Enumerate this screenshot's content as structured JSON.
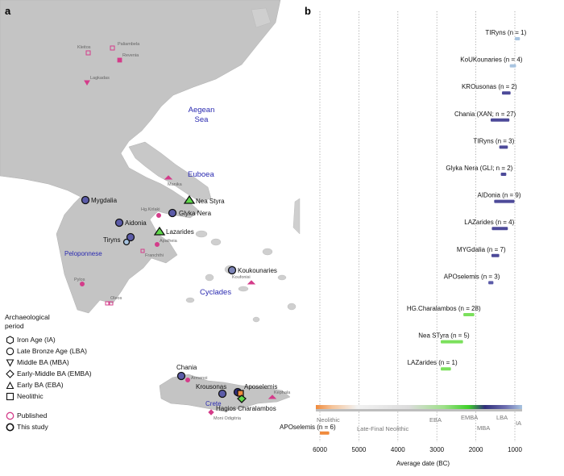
{
  "panels": {
    "a": "a",
    "b": "b"
  },
  "map": {
    "sea_labels": [
      "Aegean",
      "Sea"
    ],
    "region_labels": {
      "euboea": "Euboea",
      "peloponnese": "Peloponnese",
      "cyclades": "Cyclades",
      "crete": "Crete"
    },
    "sites": [
      {
        "name": "Mygdalia",
        "kind": "study",
        "shape": "circle"
      },
      {
        "name": "Nea Styra",
        "kind": "study",
        "shape": "triangle"
      },
      {
        "name": "Glyka Nera",
        "kind": "study",
        "shape": "circle"
      },
      {
        "name": "Aidonia",
        "kind": "study",
        "shape": "circle"
      },
      {
        "name": "Lazarides",
        "kind": "study",
        "shape": "triangle"
      },
      {
        "name": "Tiryns",
        "kind": "study",
        "shape": "circle"
      },
      {
        "name": "Koukounaries",
        "kind": "study",
        "shape": "circle"
      },
      {
        "name": "Chania",
        "kind": "study",
        "shape": "circle"
      },
      {
        "name": "Krousonas",
        "kind": "study",
        "shape": "circle"
      },
      {
        "name": "Aposelemis",
        "kind": "study",
        "shape": "square"
      },
      {
        "name": "Hagios Charalambos",
        "kind": "study",
        "shape": "diamond"
      }
    ],
    "published_sites": [
      "Paliambela",
      "Kleitos",
      "Revenia",
      "Lagkadas",
      "Manika",
      "Hg.Kirlaki",
      "Apatheia",
      "Franchthi",
      "Pylos",
      "Oleos",
      "Koufonisi",
      "Armenoi",
      "Kephala",
      "Moni Odigitria"
    ]
  },
  "legend": {
    "title_line1": "Archaeological",
    "title_line2": "period",
    "periods": [
      "Iron Age (IA)",
      "Late Bronze Age (LBA)",
      "Middle BA (MBA)",
      "Early-Middle BA (EMBA)",
      "Early BA (EBA)",
      "Neolithic"
    ],
    "sources": [
      "Published",
      "This study"
    ]
  },
  "chart_data": {
    "type": "range-bar",
    "xlabel": "Average date (BC)",
    "x_ticks": [
      6000,
      5000,
      4000,
      3000,
      2000,
      1000
    ],
    "xlim": [
      6300,
      800
    ],
    "x_reversed": true,
    "grid": "vertical dotted",
    "period_colors": {
      "IA": "#a8c4e0",
      "LBA": "#4d4a99",
      "MBA": "#5b5ba8",
      "EMBA": "#2f2f7a",
      "EBA": "#7be05c",
      "Neolithic": "#f08a3c"
    },
    "period_bar_labels": [
      "Neolithic",
      "Late-Final Neolithic",
      "EBA",
      "EMBA",
      "MBA",
      "LBA",
      "IA"
    ],
    "series": [
      {
        "label": "TIRyns (n = 1)",
        "start": 1000,
        "end": 870,
        "period": "IA"
      },
      {
        "label": "KoUKounaries (n = 4)",
        "start": 1130,
        "end": 970,
        "period": "IA"
      },
      {
        "label": "KROusonas (n = 2)",
        "start": 1330,
        "end": 1110,
        "period": "LBA"
      },
      {
        "label": "Chania (XAN; n = 27)",
        "start": 1620,
        "end": 1140,
        "period": "LBA"
      },
      {
        "label": "TIRyns (n = 3)",
        "start": 1400,
        "end": 1180,
        "period": "LBA"
      },
      {
        "label": "Glyka Nera (GLI; n = 2)",
        "start": 1360,
        "end": 1220,
        "period": "LBA"
      },
      {
        "label": "AIDonia (n = 9)",
        "start": 1530,
        "end": 1010,
        "period": "LBA"
      },
      {
        "label": "LAZarides (n = 4)",
        "start": 1590,
        "end": 1180,
        "period": "LBA"
      },
      {
        "label": "MYGdalia (n = 7)",
        "start": 1600,
        "end": 1400,
        "period": "LBA"
      },
      {
        "label": "APOselemis (n = 3)",
        "start": 1680,
        "end": 1550,
        "period": "MBA"
      },
      {
        "label": "HG.Charalambos (n = 28)",
        "start": 2320,
        "end": 2040,
        "period": "EBA"
      },
      {
        "label": "Nea STyra (n = 5)",
        "start": 2900,
        "end": 2330,
        "period": "EBA"
      },
      {
        "label": "LAZarides (n = 1)",
        "start": 2900,
        "end": 2640,
        "period": "EBA"
      },
      {
        "label": "APOselemis (n = 6)",
        "start": 6000,
        "end": 5760,
        "period": "Neolithic"
      }
    ]
  }
}
